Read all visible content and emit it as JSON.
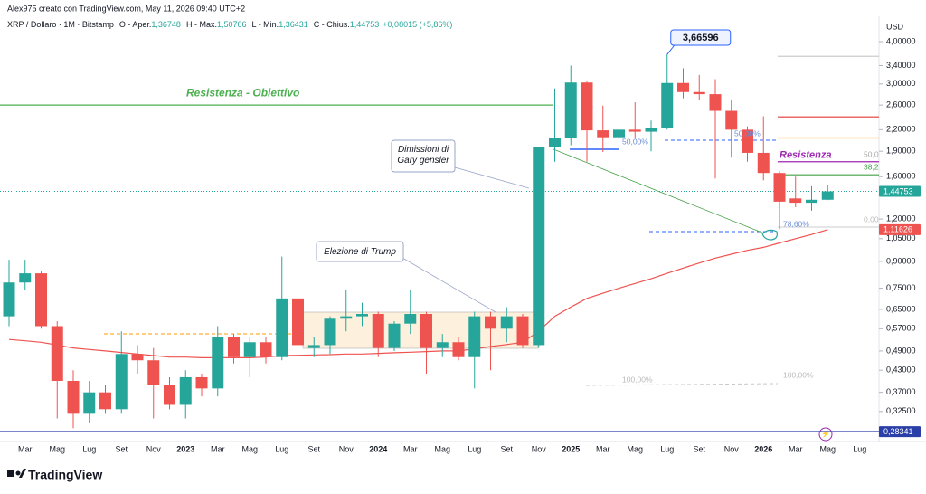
{
  "chart_data": {
    "type": "candlestick",
    "creator": "Alex975 creato con TradingView.com, May 11, 2026 09:40 UTC+2",
    "title": "XRP / Dollaro · 1M · Bitstamp",
    "legend_items": [
      {
        "label": "O - Aper.",
        "value": "1,36748"
      },
      {
        "label": "H - Max.",
        "value": "1,50766"
      },
      {
        "label": "L - Min.",
        "value": "1,36431"
      },
      {
        "label": "C - Chius.",
        "value": "1,44753"
      }
    ],
    "change": "+0,08015 (+5,86%)",
    "y_axis_label": "USD",
    "brand": "TradingView",
    "log_scale": true,
    "up_color": "#26a69a",
    "down_color": "#ef5350",
    "categories": [
      null,
      "Mar",
      null,
      "Mag",
      null,
      "Lug",
      null,
      "Set",
      null,
      "Nov",
      null,
      "2023",
      null,
      "Mar",
      null,
      "Mag",
      null,
      "Lug",
      null,
      "Set",
      null,
      "Nov",
      null,
      "2024",
      null,
      "Mar",
      null,
      "Mag",
      null,
      "Lug",
      null,
      "Set",
      null,
      "Nov",
      null,
      "2025",
      null,
      "Mar",
      null,
      "Mag",
      null,
      "Lug",
      null,
      "Set",
      null,
      "Nov",
      null,
      "2026",
      null,
      "Mar",
      null,
      "Mag",
      null,
      "Lug"
    ],
    "open": [
      0.62,
      0.78,
      0.83,
      0.58,
      0.4,
      0.32,
      0.37,
      0.33,
      0.48,
      0.46,
      0.39,
      0.34,
      0.41,
      0.38,
      0.54,
      0.47,
      0.52,
      0.47,
      0.7,
      0.5,
      0.51,
      0.61,
      0.62,
      0.63,
      0.5,
      0.59,
      0.63,
      0.5,
      0.52,
      0.47,
      0.62,
      0.57,
      0.62,
      0.51,
      1.95,
      2.08,
      3.03,
      2.19,
      2.09,
      2.2,
      2.17,
      2.23,
      3.02,
      2.84,
      2.8,
      2.5,
      2.2,
      1.88,
      1.64,
      1.38,
      1.34,
      1.36748,
      null,
      null
    ],
    "high": [
      0.91,
      0.91,
      0.84,
      0.6,
      0.43,
      0.4,
      0.39,
      0.56,
      0.51,
      0.5,
      0.41,
      0.43,
      0.42,
      0.58,
      0.55,
      0.54,
      0.54,
      0.93,
      0.74,
      0.54,
      0.62,
      0.74,
      0.68,
      0.64,
      0.6,
      0.74,
      0.64,
      0.55,
      0.54,
      0.64,
      0.64,
      0.66,
      0.63,
      1.95,
      2.91,
      3.4,
      3.05,
      2.59,
      2.36,
      2.65,
      2.34,
      3.66596,
      3.34,
      3.19,
      3.1,
      2.7,
      2.25,
      2.41,
      1.66,
      1.6,
      1.5,
      1.50766,
      null,
      null
    ],
    "low": [
      0.58,
      0.74,
      0.57,
      0.31,
      0.29,
      0.3,
      0.32,
      0.32,
      0.42,
      0.31,
      0.33,
      0.31,
      0.36,
      0.36,
      0.45,
      0.41,
      0.45,
      0.46,
      0.43,
      0.47,
      0.48,
      0.56,
      0.58,
      0.47,
      0.49,
      0.55,
      0.42,
      0.47,
      0.46,
      0.38,
      0.43,
      0.52,
      0.5,
      0.5,
      1.77,
      1.98,
      1.77,
      1.89,
      1.61,
      2.07,
      1.9,
      2.2,
      2.72,
      2.7,
      1.58,
      1.82,
      1.77,
      1.56,
      1.12,
      1.3,
      1.27,
      1.36431,
      null,
      null
    ],
    "close": [
      0.78,
      0.83,
      0.58,
      0.4,
      0.32,
      0.37,
      0.33,
      0.48,
      0.46,
      0.39,
      0.34,
      0.41,
      0.38,
      0.54,
      0.47,
      0.52,
      0.47,
      0.7,
      0.51,
      0.51,
      0.61,
      0.62,
      0.63,
      0.5,
      0.59,
      0.63,
      0.5,
      0.52,
      0.47,
      0.62,
      0.57,
      0.62,
      0.51,
      1.95,
      2.08,
      3.03,
      2.19,
      2.09,
      2.2,
      2.17,
      2.23,
      3.02,
      2.84,
      2.8,
      2.5,
      2.2,
      1.88,
      1.64,
      1.35,
      1.34,
      1.36748,
      1.44753,
      null,
      null
    ],
    "ema": {
      "color": "#ef5350",
      "values": [
        0.53,
        0.525,
        0.52,
        0.51,
        0.5,
        0.495,
        0.49,
        0.485,
        0.48,
        0.475,
        0.47,
        0.47,
        0.468,
        0.468,
        0.468,
        0.468,
        0.47,
        0.475,
        0.476,
        0.477,
        0.478,
        0.48,
        0.48,
        0.482,
        0.484,
        0.486,
        0.488,
        0.49,
        0.49,
        0.497,
        0.505,
        0.512,
        0.52,
        0.56,
        0.62,
        0.66,
        0.7,
        0.725,
        0.75,
        0.775,
        0.8,
        0.83,
        0.86,
        0.89,
        0.92,
        0.945,
        0.97,
        0.99,
        1.02,
        1.05,
        1.08,
        1.11626,
        null,
        null
      ]
    },
    "ylim": [
      0.27,
      4.75
    ],
    "yticks": [
      {
        "value": 4.0,
        "label": "4,00000"
      },
      {
        "value": 3.4,
        "label": "3,40000"
      },
      {
        "value": 3.0,
        "label": "3,00000"
      },
      {
        "value": 2.6,
        "label": "2,60000"
      },
      {
        "value": 2.2,
        "label": "2,20000"
      },
      {
        "value": 1.9,
        "label": "1,90000"
      },
      {
        "value": 1.6,
        "label": "1,60000"
      },
      {
        "value": 1.2,
        "label": "1,20000"
      },
      {
        "value": 1.05,
        "label": "1,05000"
      },
      {
        "value": 0.9,
        "label": "0,90000"
      },
      {
        "value": 0.75,
        "label": "0,75000"
      },
      {
        "value": 0.65,
        "label": "0,65000"
      },
      {
        "value": 0.57,
        "label": "0,57000"
      },
      {
        "value": 0.49,
        "label": "0,49000"
      },
      {
        "value": 0.43,
        "label": "0,43000"
      },
      {
        "value": 0.37,
        "label": "0,37000"
      },
      {
        "value": 0.325,
        "label": "0,32500"
      }
    ],
    "levels": [
      {
        "value": 2.6,
        "color": "#4caf50",
        "label": "Resistenza - Obiettivo"
      },
      {
        "value": 3.62,
        "color": "#cccccc"
      },
      {
        "value": 2.4,
        "color": "#e53935"
      },
      {
        "value": 2.08,
        "color": "#ff9800"
      },
      {
        "value": 1.77,
        "color": "#9c27b0",
        "label": "Resistenza"
      },
      {
        "value": 1.62,
        "color": "#43a047"
      }
    ],
    "price_labels": [
      {
        "value": 1.44753,
        "label": "1,44753",
        "color": "#26a69a"
      },
      {
        "value": 1.11626,
        "label": "1,11626",
        "color": "#ef5350"
      },
      {
        "value": 0.28341,
        "label": "0,28341",
        "color": "#2a3fa8"
      }
    ],
    "peak_label": {
      "value": 3.66596,
      "label": "3,66596"
    },
    "annotations": [
      {
        "text": "Dimissioni di\nGary gensler"
      },
      {
        "text": "Elezione di Trump"
      }
    ],
    "fib_labels": [
      {
        "text": "50,00%",
        "color": "#6b8fd8"
      },
      {
        "text": "50,00%",
        "color": "#6b8fd8"
      },
      {
        "text": "78,60%",
        "color": "#6b8fd8"
      },
      {
        "text": "100,00%",
        "color": "#bbbbbb"
      },
      {
        "text": "100,00%",
        "color": "#bbbbbb"
      },
      {
        "text": "50,0",
        "color": "#aaaaaa"
      },
      {
        "text": "38,2",
        "color": "#43a047"
      },
      {
        "text": "0,00",
        "color": "#bbbbbb"
      }
    ]
  }
}
